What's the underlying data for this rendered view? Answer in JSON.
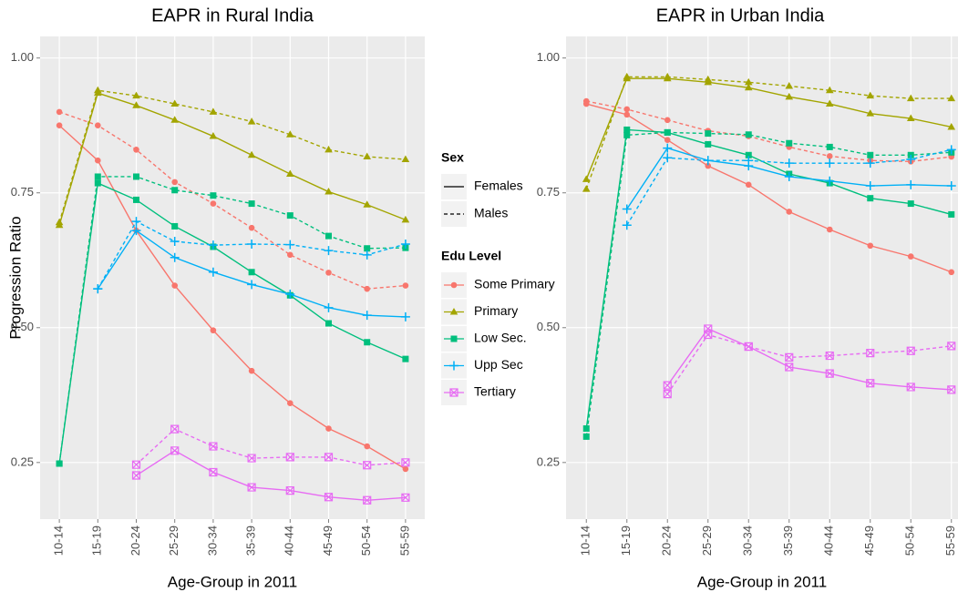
{
  "chart_data": [
    {
      "type": "line",
      "title": "EAPR in Rural India",
      "x_label": "Age-Group in 2011",
      "y_label": "Progression Ratio",
      "categories": [
        "10-14",
        "15-19",
        "20-24",
        "25-29",
        "30-34",
        "35-39",
        "40-44",
        "45-49",
        "50-54",
        "55-59"
      ],
      "ylim": [
        0.145,
        1.04
      ],
      "yticks": [
        {
          "value": 0.25,
          "label": "0.25"
        },
        {
          "value": 0.5,
          "label": "0.50"
        },
        {
          "value": 0.75,
          "label": "0.75"
        },
        {
          "value": 1,
          "label": "1.00"
        }
      ],
      "grid": true,
      "series": [
        {
          "name": "Some Primary",
          "sex": "Females",
          "values": [
            0.875,
            0.81,
            0.68,
            0.578,
            0.495,
            0.42,
            0.36,
            0.313,
            0.28,
            0.238
          ]
        },
        {
          "name": "Some Primary",
          "sex": "Males",
          "values": [
            0.9,
            0.875,
            0.83,
            0.77,
            0.73,
            0.685,
            0.635,
            0.602,
            0.572,
            0.578
          ]
        },
        {
          "name": "Primary",
          "sex": "Females",
          "values": [
            0.69,
            0.935,
            0.912,
            0.885,
            0.855,
            0.82,
            0.785,
            0.752,
            0.728,
            0.7
          ]
        },
        {
          "name": "Primary",
          "sex": "Males",
          "values": [
            0.695,
            0.94,
            0.93,
            0.915,
            0.9,
            0.882,
            0.858,
            0.83,
            0.817,
            0.812
          ]
        },
        {
          "name": "Low Sec.",
          "sex": "Females",
          "values": [
            0.248,
            0.768,
            0.737,
            0.688,
            0.65,
            0.603,
            0.56,
            0.508,
            0.473,
            0.442
          ]
        },
        {
          "name": "Low Sec.",
          "sex": "Males",
          "values": [
            0.248,
            0.78,
            0.78,
            0.755,
            0.745,
            0.73,
            0.708,
            0.67,
            0.647,
            0.648
          ]
        },
        {
          "name": "Upp Sec",
          "sex": "Females",
          "values": [
            null,
            0.572,
            0.68,
            0.63,
            0.603,
            0.58,
            0.562,
            0.537,
            0.523,
            0.52
          ]
        },
        {
          "name": "Upp Sec",
          "sex": "Males",
          "values": [
            null,
            0.572,
            0.697,
            0.66,
            0.653,
            0.655,
            0.654,
            0.643,
            0.635,
            0.655
          ]
        },
        {
          "name": "Tertiary",
          "sex": "Females",
          "values": [
            null,
            null,
            0.226,
            0.272,
            0.232,
            0.204,
            0.198,
            0.186,
            0.18,
            0.185
          ]
        },
        {
          "name": "Tertiary",
          "sex": "Males",
          "values": [
            null,
            null,
            0.246,
            0.312,
            0.28,
            0.258,
            0.26,
            0.26,
            0.245,
            0.25
          ]
        }
      ]
    },
    {
      "type": "line",
      "title": "EAPR in Urban India",
      "x_label": "Age-Group in 2011",
      "categories": [
        "10-14",
        "15-19",
        "20-24",
        "25-29",
        "30-34",
        "35-39",
        "40-44",
        "45-49",
        "50-54",
        "55-59"
      ],
      "ylim": [
        0.145,
        1.04
      ],
      "yticks": [
        {
          "value": 0.25,
          "label": "0.25"
        },
        {
          "value": 0.5,
          "label": "0.50"
        },
        {
          "value": 0.75,
          "label": "0.75"
        },
        {
          "value": 1,
          "label": "1.00"
        }
      ],
      "grid": true,
      "series": [
        {
          "name": "Some Primary",
          "sex": "Females",
          "values": [
            0.915,
            0.895,
            0.848,
            0.8,
            0.765,
            0.715,
            0.682,
            0.652,
            0.632,
            0.603
          ]
        },
        {
          "name": "Some Primary",
          "sex": "Males",
          "values": [
            0.92,
            0.905,
            0.885,
            0.865,
            0.855,
            0.835,
            0.818,
            0.81,
            0.808,
            0.817
          ]
        },
        {
          "name": "Primary",
          "sex": "Females",
          "values": [
            0.775,
            0.962,
            0.962,
            0.955,
            0.945,
            0.928,
            0.915,
            0.897,
            0.888,
            0.872
          ]
        },
        {
          "name": "Primary",
          "sex": "Males",
          "values": [
            0.757,
            0.965,
            0.965,
            0.96,
            0.955,
            0.948,
            0.94,
            0.93,
            0.925,
            0.925
          ]
        },
        {
          "name": "Low Sec.",
          "sex": "Females",
          "values": [
            0.313,
            0.867,
            0.862,
            0.84,
            0.82,
            0.785,
            0.768,
            0.74,
            0.73,
            0.71
          ]
        },
        {
          "name": "Low Sec.",
          "sex": "Males",
          "values": [
            0.298,
            0.857,
            0.862,
            0.86,
            0.858,
            0.842,
            0.835,
            0.82,
            0.82,
            0.825
          ]
        },
        {
          "name": "Upp Sec",
          "sex": "Females",
          "values": [
            null,
            0.72,
            0.833,
            0.81,
            0.8,
            0.78,
            0.772,
            0.763,
            0.765,
            0.763
          ]
        },
        {
          "name": "Upp Sec",
          "sex": "Males",
          "values": [
            null,
            0.69,
            0.815,
            0.81,
            0.81,
            0.805,
            0.805,
            0.805,
            0.812,
            0.83
          ]
        },
        {
          "name": "Tertiary",
          "sex": "Females",
          "values": [
            null,
            null,
            0.393,
            0.498,
            0.465,
            0.427,
            0.415,
            0.397,
            0.39,
            0.385
          ]
        },
        {
          "name": "Tertiary",
          "sex": "Males",
          "values": [
            null,
            null,
            0.377,
            0.487,
            0.465,
            0.445,
            0.448,
            0.453,
            0.457,
            0.466
          ]
        }
      ]
    }
  ],
  "legend": {
    "sex_title": "Sex",
    "sex": [
      {
        "name": "Females",
        "dash": "solid"
      },
      {
        "name": "Males",
        "dash": "dashed"
      }
    ],
    "edu_title": "Edu Level",
    "edu": [
      {
        "name": "Some Primary",
        "color": "#F8766D",
        "marker": "circle"
      },
      {
        "name": "Primary",
        "color": "#A3A500",
        "marker": "triangle"
      },
      {
        "name": "Low Sec.",
        "color": "#00BF7D",
        "marker": "square"
      },
      {
        "name": "Upp Sec",
        "color": "#00B0F6",
        "marker": "plus"
      },
      {
        "name": "Tertiary",
        "color": "#E76BF3",
        "marker": "boxx"
      }
    ]
  }
}
